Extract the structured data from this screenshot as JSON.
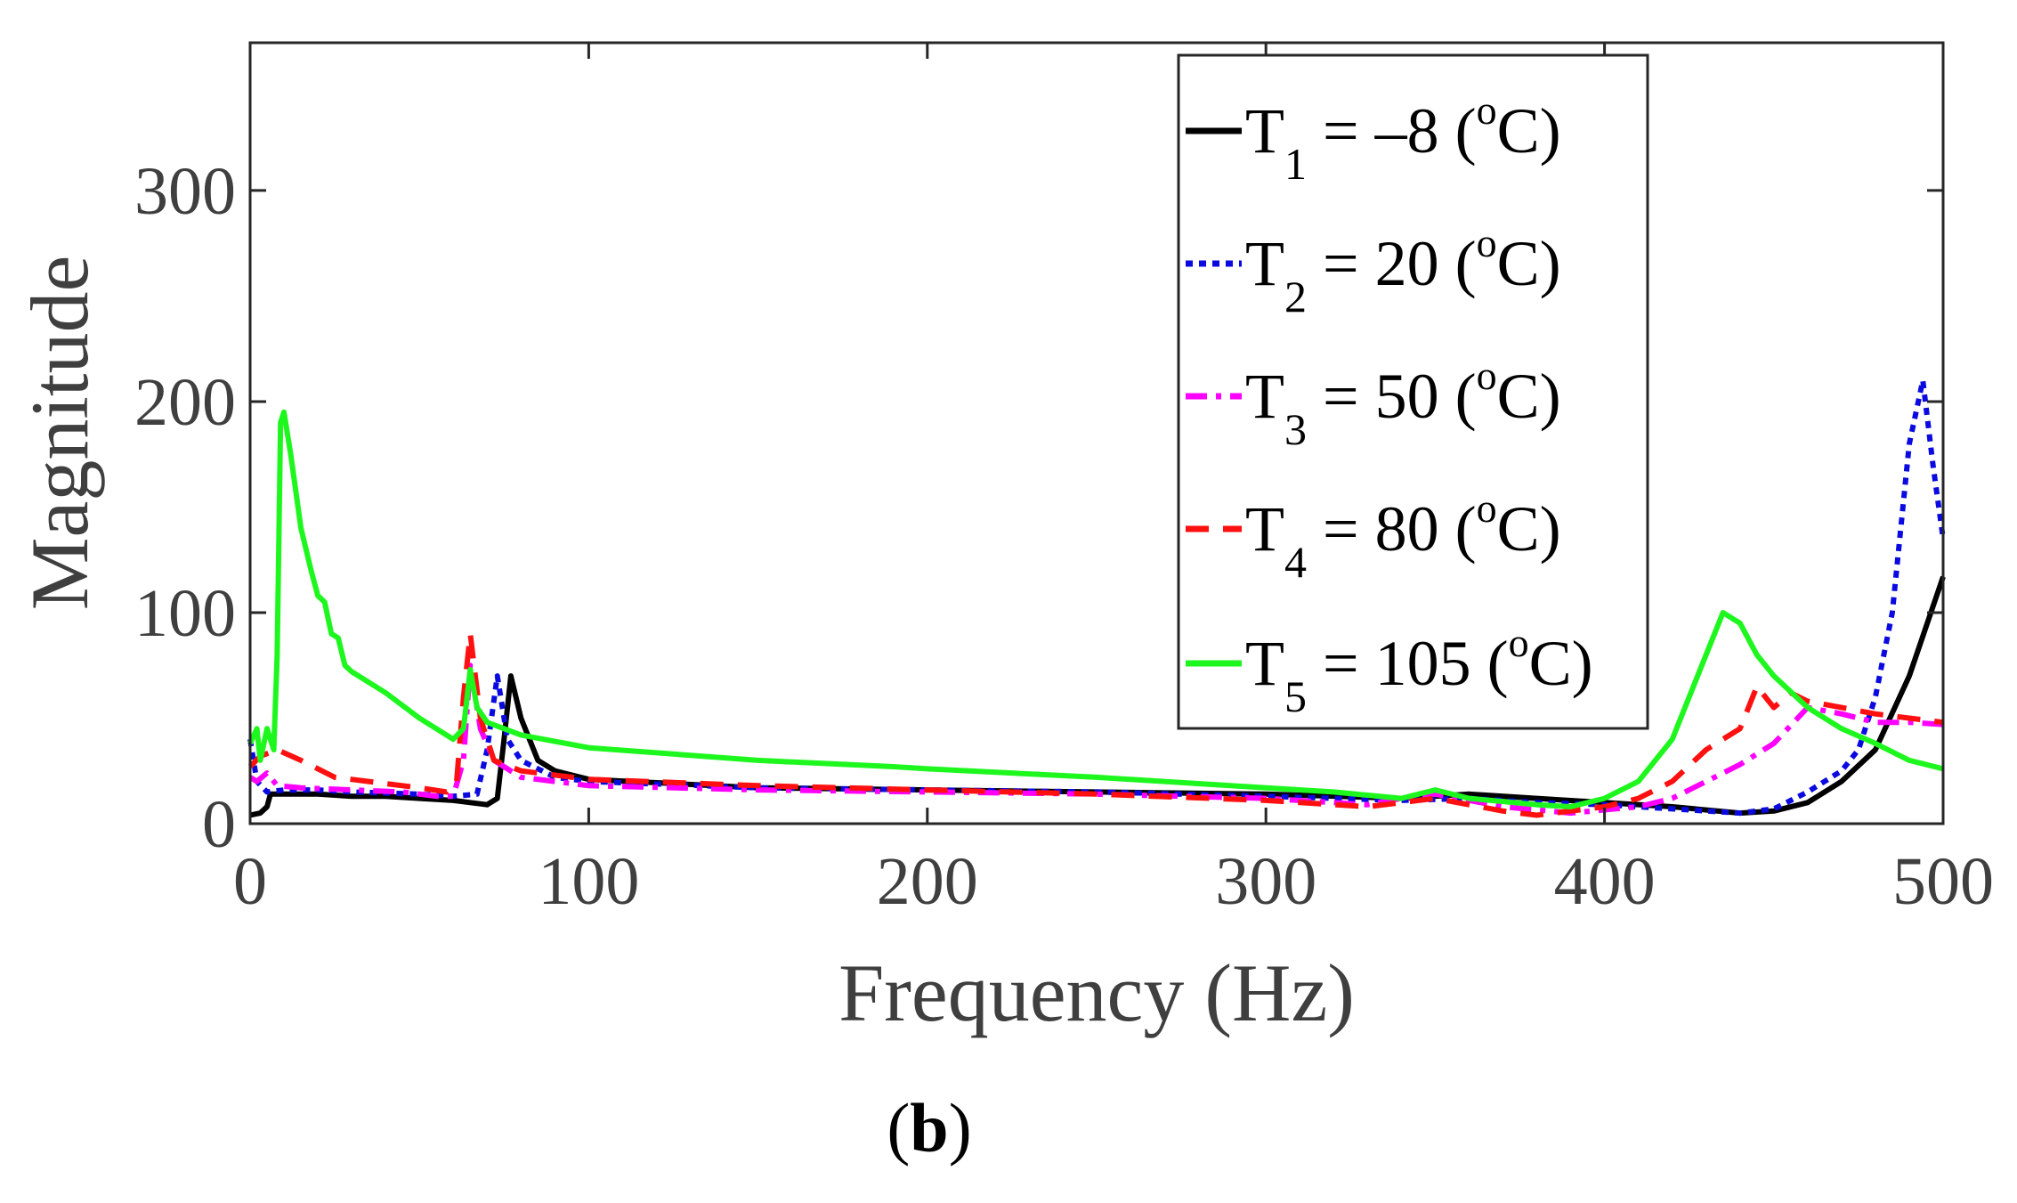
{
  "chart_data": {
    "type": "line",
    "title": "",
    "xlabel": "Frequency (Hz)",
    "ylabel": "Magnitude",
    "xlim": [
      0,
      500
    ],
    "ylim": [
      0,
      370
    ],
    "x_ticks": [
      "0",
      "100",
      "200",
      "300",
      "400",
      "500"
    ],
    "y_ticks": [
      "0",
      "100",
      "200",
      "300"
    ],
    "x_tick_values": [
      0,
      100,
      200,
      300,
      400,
      500
    ],
    "y_tick_values": [
      0,
      100,
      200,
      300
    ],
    "grid": false,
    "legend_position": "top-right",
    "panel_label": "b",
    "series": [
      {
        "name": "T1",
        "legend": {
          "base": "T",
          "sub": "1",
          "rest": " = –8 (",
          "sup": "o",
          "tail": "C)"
        },
        "color": "#000000",
        "dash": "solid",
        "points": [
          [
            0,
            4
          ],
          [
            3,
            5
          ],
          [
            5,
            8
          ],
          [
            6,
            14
          ],
          [
            10,
            14
          ],
          [
            20,
            14
          ],
          [
            30,
            13
          ],
          [
            40,
            13
          ],
          [
            50,
            12
          ],
          [
            60,
            11
          ],
          [
            65,
            10
          ],
          [
            70,
            9
          ],
          [
            73,
            12
          ],
          [
            75,
            40
          ],
          [
            77,
            70
          ],
          [
            80,
            50
          ],
          [
            85,
            30
          ],
          [
            90,
            25
          ],
          [
            100,
            21
          ],
          [
            150,
            17
          ],
          [
            200,
            16
          ],
          [
            250,
            15
          ],
          [
            300,
            14
          ],
          [
            340,
            12
          ],
          [
            360,
            14
          ],
          [
            380,
            12
          ],
          [
            400,
            10
          ],
          [
            420,
            8
          ],
          [
            440,
            5
          ],
          [
            450,
            6
          ],
          [
            460,
            10
          ],
          [
            470,
            20
          ],
          [
            480,
            35
          ],
          [
            490,
            70
          ],
          [
            500,
            117
          ]
        ]
      },
      {
        "name": "T2",
        "legend": {
          "base": "T",
          "sub": "2",
          "rest": " = 20 (",
          "sup": "o",
          "tail": "C)"
        },
        "color": "#0a0ae0",
        "dash": "dotted",
        "points": [
          [
            0,
            40
          ],
          [
            2,
            20
          ],
          [
            5,
            15
          ],
          [
            10,
            16
          ],
          [
            20,
            16
          ],
          [
            30,
            15
          ],
          [
            50,
            14
          ],
          [
            60,
            13
          ],
          [
            67,
            14
          ],
          [
            70,
            35
          ],
          [
            73,
            70
          ],
          [
            76,
            40
          ],
          [
            80,
            30
          ],
          [
            90,
            22
          ],
          [
            100,
            20
          ],
          [
            150,
            17
          ],
          [
            200,
            16
          ],
          [
            250,
            15
          ],
          [
            300,
            13
          ],
          [
            340,
            11
          ],
          [
            360,
            12
          ],
          [
            380,
            10
          ],
          [
            400,
            9
          ],
          [
            420,
            7
          ],
          [
            440,
            5
          ],
          [
            450,
            7
          ],
          [
            460,
            15
          ],
          [
            470,
            25
          ],
          [
            475,
            35
          ],
          [
            480,
            60
          ],
          [
            485,
            100
          ],
          [
            490,
            180
          ],
          [
            494,
            210
          ],
          [
            497,
            170
          ],
          [
            500,
            135
          ]
        ]
      },
      {
        "name": "T3",
        "legend": {
          "base": "T",
          "sub": "3",
          "rest": " = 50 (",
          "sup": "o",
          "tail": "C)"
        },
        "color": "#ff00ff",
        "dash": "dashdot",
        "points": [
          [
            0,
            22
          ],
          [
            2,
            20
          ],
          [
            5,
            24
          ],
          [
            8,
            18
          ],
          [
            15,
            17
          ],
          [
            30,
            16
          ],
          [
            45,
            15
          ],
          [
            55,
            13
          ],
          [
            60,
            13
          ],
          [
            63,
            30
          ],
          [
            65,
            75
          ],
          [
            68,
            45
          ],
          [
            72,
            30
          ],
          [
            80,
            22
          ],
          [
            100,
            18
          ],
          [
            150,
            16
          ],
          [
            200,
            15
          ],
          [
            250,
            14
          ],
          [
            300,
            12
          ],
          [
            320,
            10
          ],
          [
            330,
            9
          ],
          [
            340,
            12
          ],
          [
            350,
            14
          ],
          [
            370,
            8
          ],
          [
            390,
            5
          ],
          [
            410,
            8
          ],
          [
            420,
            12
          ],
          [
            430,
            20
          ],
          [
            440,
            28
          ],
          [
            450,
            38
          ],
          [
            460,
            55
          ],
          [
            470,
            52
          ],
          [
            480,
            48
          ],
          [
            490,
            48
          ],
          [
            500,
            47
          ]
        ]
      },
      {
        "name": "T4",
        "legend": {
          "base": "T",
          "sub": "4",
          "rest": " = 80 (",
          "sup": "o",
          "tail": "C)"
        },
        "color": "#ff1010",
        "dash": "dashed",
        "points": [
          [
            0,
            27
          ],
          [
            3,
            32
          ],
          [
            8,
            35
          ],
          [
            15,
            30
          ],
          [
            25,
            22
          ],
          [
            35,
            20
          ],
          [
            50,
            17
          ],
          [
            58,
            15
          ],
          [
            61,
            20
          ],
          [
            63,
            60
          ],
          [
            65,
            90
          ],
          [
            68,
            50
          ],
          [
            72,
            30
          ],
          [
            80,
            25
          ],
          [
            100,
            21
          ],
          [
            150,
            18
          ],
          [
            200,
            16
          ],
          [
            250,
            14
          ],
          [
            300,
            11
          ],
          [
            330,
            8
          ],
          [
            350,
            12
          ],
          [
            370,
            6
          ],
          [
            380,
            4
          ],
          [
            400,
            8
          ],
          [
            410,
            12
          ],
          [
            420,
            20
          ],
          [
            430,
            35
          ],
          [
            440,
            45
          ],
          [
            445,
            65
          ],
          [
            450,
            55
          ],
          [
            455,
            62
          ],
          [
            460,
            58
          ],
          [
            470,
            55
          ],
          [
            480,
            52
          ],
          [
            490,
            50
          ],
          [
            500,
            48
          ]
        ]
      },
      {
        "name": "T5",
        "legend": {
          "base": "T",
          "sub": "5",
          "rest": " = 105 (",
          "sup": "o",
          "tail": "C)"
        },
        "color": "#1df71d",
        "dash": "solid",
        "points": [
          [
            0,
            38
          ],
          [
            2,
            45
          ],
          [
            3,
            30
          ],
          [
            5,
            45
          ],
          [
            7,
            35
          ],
          [
            8,
            80
          ],
          [
            9,
            190
          ],
          [
            10,
            195
          ],
          [
            12,
            175
          ],
          [
            15,
            140
          ],
          [
            18,
            120
          ],
          [
            20,
            108
          ],
          [
            22,
            105
          ],
          [
            24,
            90
          ],
          [
            26,
            88
          ],
          [
            28,
            75
          ],
          [
            30,
            72
          ],
          [
            40,
            62
          ],
          [
            50,
            50
          ],
          [
            60,
            40
          ],
          [
            63,
            45
          ],
          [
            65,
            73
          ],
          [
            67,
            55
          ],
          [
            70,
            48
          ],
          [
            80,
            42
          ],
          [
            100,
            36
          ],
          [
            150,
            30
          ],
          [
            190,
            27
          ],
          [
            200,
            26
          ],
          [
            250,
            22
          ],
          [
            300,
            17
          ],
          [
            320,
            15
          ],
          [
            340,
            12
          ],
          [
            350,
            16
          ],
          [
            360,
            12
          ],
          [
            380,
            9
          ],
          [
            390,
            8
          ],
          [
            400,
            12
          ],
          [
            410,
            20
          ],
          [
            420,
            40
          ],
          [
            430,
            80
          ],
          [
            435,
            100
          ],
          [
            440,
            95
          ],
          [
            445,
            80
          ],
          [
            450,
            70
          ],
          [
            460,
            55
          ],
          [
            470,
            45
          ],
          [
            480,
            38
          ],
          [
            490,
            30
          ],
          [
            500,
            26
          ]
        ]
      }
    ]
  }
}
